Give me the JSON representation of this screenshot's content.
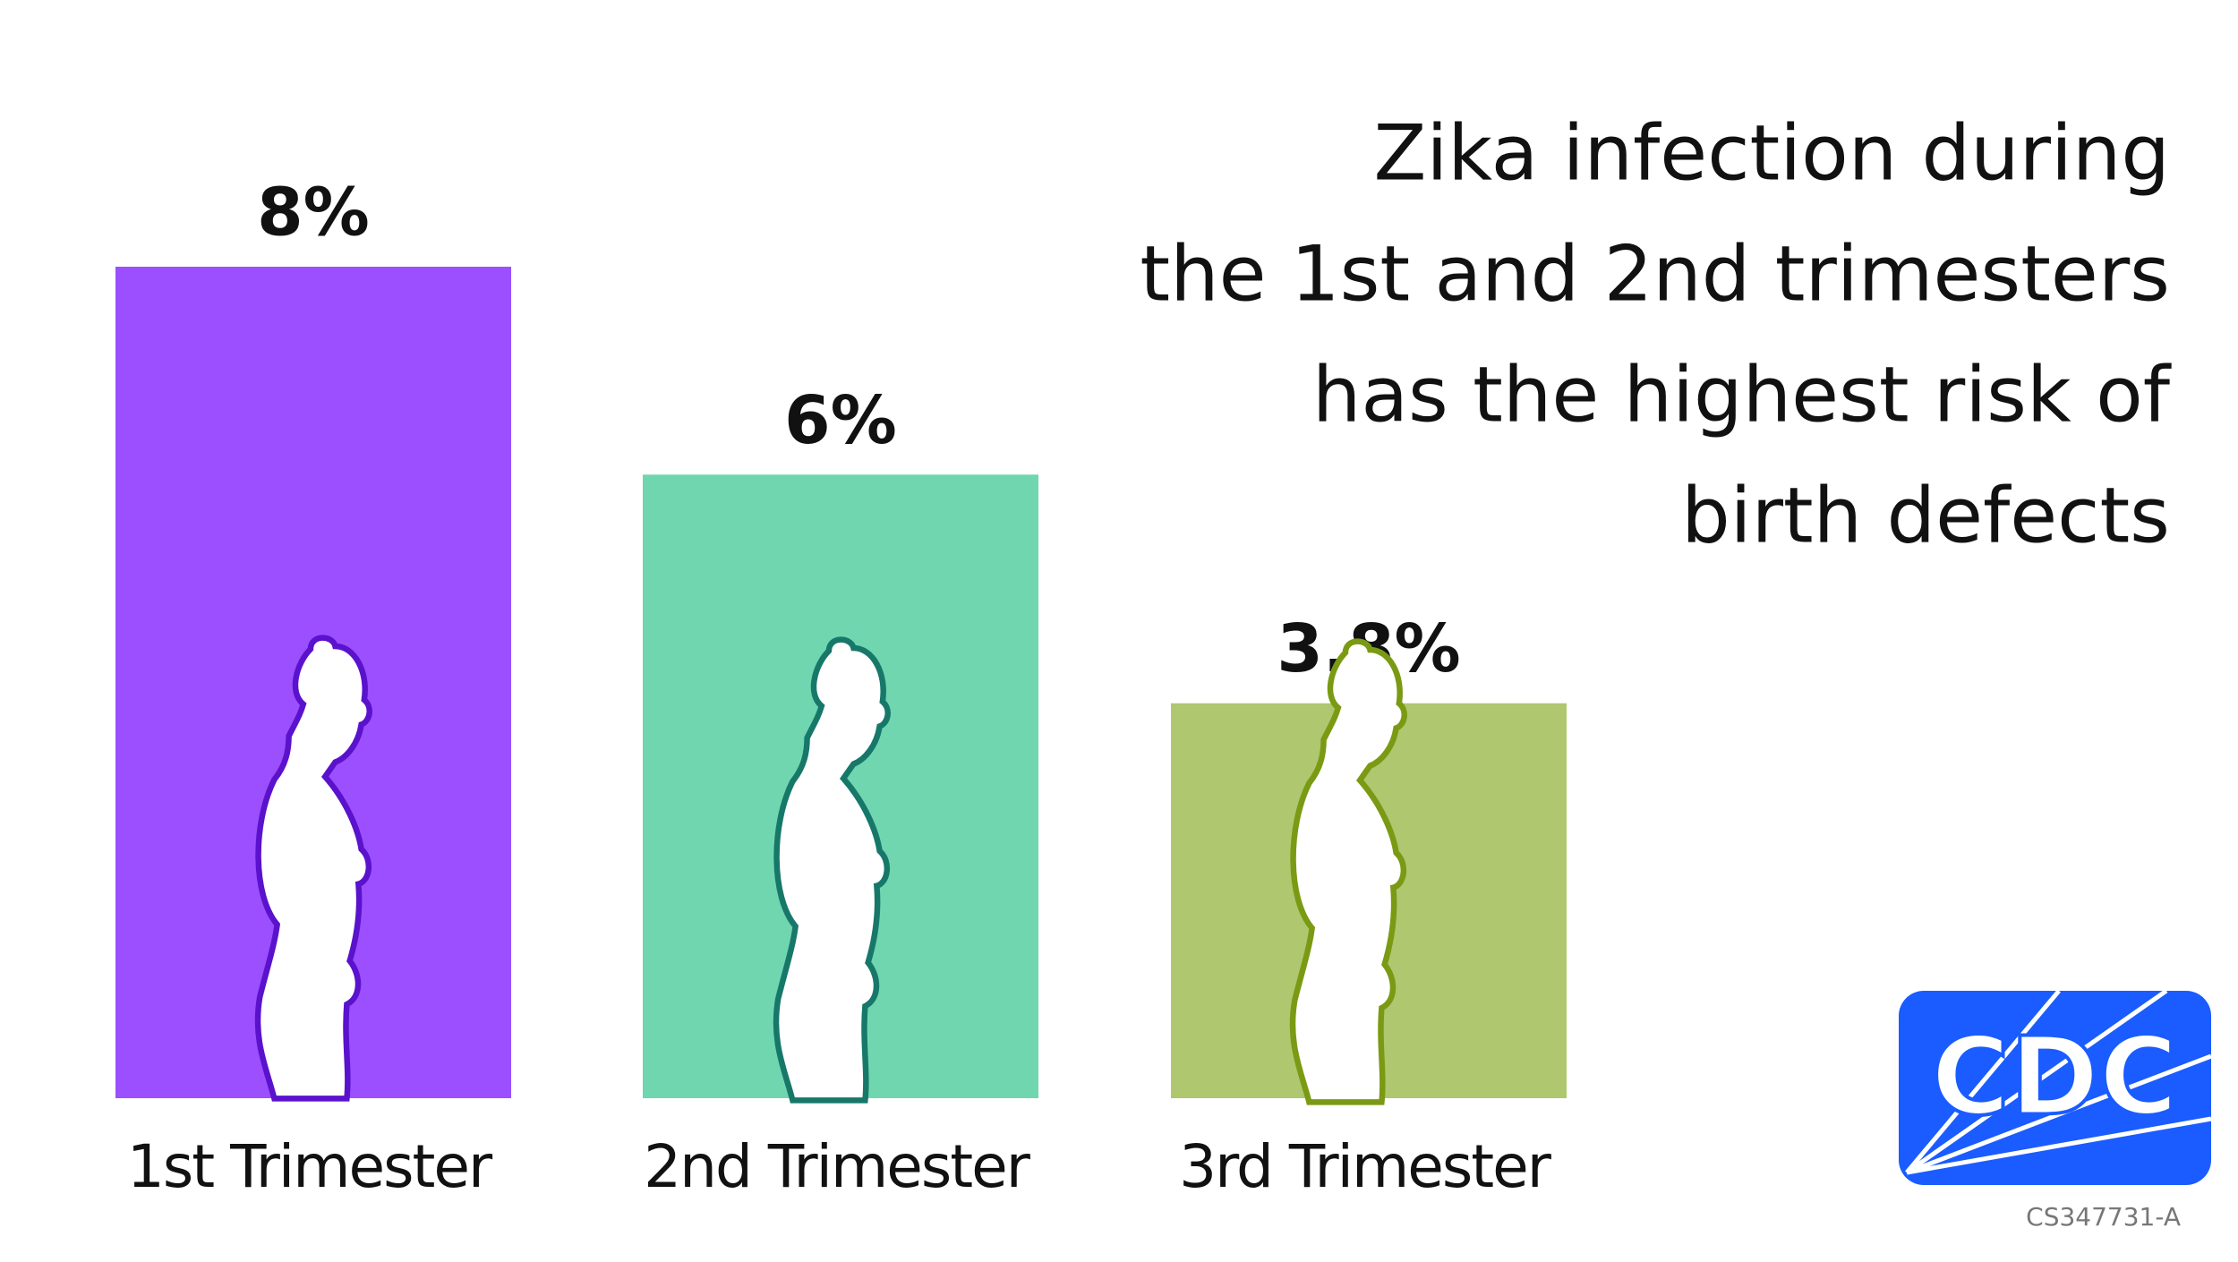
{
  "chart_data": {
    "type": "bar",
    "title_lines": [
      "Zika infection during",
      "the 1st and 2nd trimesters",
      "has the highest risk of",
      "birth defects"
    ],
    "categories": [
      "1st Trimester",
      "2nd Trimester",
      "3rd Trimester"
    ],
    "values": [
      8,
      6,
      3.8
    ],
    "value_labels": [
      "8%",
      "6%",
      "3.8%"
    ],
    "colors": [
      "#9b4fff",
      "#70d6b0",
      "#afc76f"
    ]
  },
  "logo": "CDC",
  "code": "CS347731-A"
}
